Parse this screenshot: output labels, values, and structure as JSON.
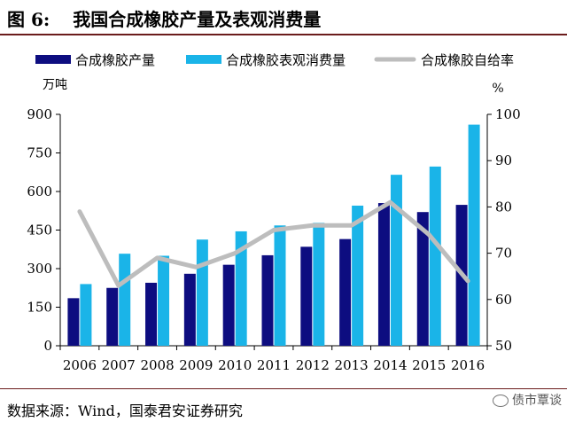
{
  "figure": {
    "label": "图 6:",
    "title": "我国合成橡胶产量及表观消费量",
    "source": "数据来源：Wind，国泰君安证券研究",
    "watermark": "债市覃谈"
  },
  "colors": {
    "production": "#0d0d80",
    "consumption": "#1ab4e8",
    "ratio": "#bdbdbd",
    "rule": "#6b1c1c"
  },
  "chart_data": {
    "type": "bar",
    "categories": [
      "2006",
      "2007",
      "2008",
      "2009",
      "2010",
      "2011",
      "2012",
      "2013",
      "2014",
      "2015",
      "2016"
    ],
    "series": [
      {
        "name": "合成橡胶产量",
        "type": "bar",
        "axis": "left",
        "values": [
          185,
          225,
          245,
          280,
          315,
          352,
          385,
          415,
          555,
          520,
          548
        ]
      },
      {
        "name": "合成橡胶表观消费量",
        "type": "bar",
        "axis": "left",
        "values": [
          240,
          358,
          350,
          413,
          445,
          468,
          478,
          545,
          665,
          697,
          860
        ]
      },
      {
        "name": "合成橡胶自给率",
        "type": "line",
        "axis": "right",
        "values": [
          79,
          63,
          69,
          67,
          70,
          75,
          76,
          76,
          81,
          74,
          64
        ]
      }
    ],
    "y_left": {
      "label": "万吨",
      "min": 0,
      "max": 900,
      "ticks": [
        0,
        150,
        300,
        450,
        600,
        750,
        900
      ]
    },
    "y_right": {
      "label": "%",
      "min": 50,
      "max": 100,
      "ticks": [
        50,
        60,
        70,
        80,
        90,
        100
      ]
    },
    "legend_position": "top",
    "grid": false
  }
}
